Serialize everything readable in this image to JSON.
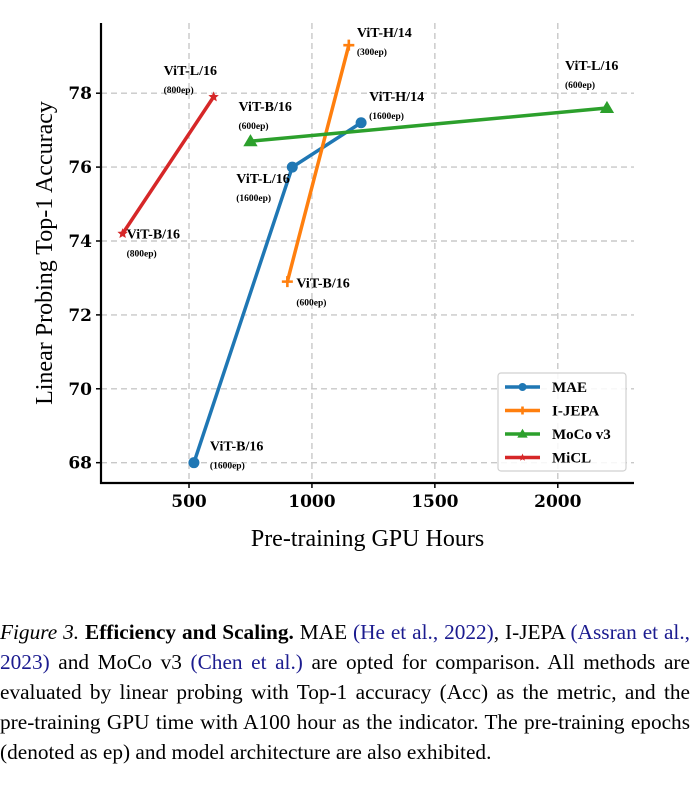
{
  "chart_data": {
    "type": "line",
    "title": "",
    "xlabel": "Pre-training GPU Hours",
    "ylabel": "Linear Probing Top-1 Accuracy",
    "xlim": [
      142,
      2310
    ],
    "ylim": [
      67.45,
      79.9
    ],
    "xticks": [
      500,
      1000,
      1500,
      2000
    ],
    "yticks": [
      68,
      70,
      72,
      74,
      76,
      78
    ],
    "grid": true,
    "legend_position": "lower-right",
    "series": [
      {
        "name": "MAE",
        "color": "#1f77b4",
        "marker": "circle",
        "points": [
          {
            "x": 520,
            "y": 68.0,
            "label": "ViT-B/16",
            "epochs": "(1600ep)"
          },
          {
            "x": 920,
            "y": 76.0,
            "label": "ViT-L/16",
            "epochs": "(1600ep)"
          },
          {
            "x": 1200,
            "y": 77.2,
            "label": "ViT-H/14",
            "epochs": "(1600ep)"
          }
        ]
      },
      {
        "name": "I-JEPA",
        "color": "#ff7f0e",
        "marker": "plus",
        "points": [
          {
            "x": 900,
            "y": 72.9,
            "label": "ViT-B/16",
            "epochs": "(600ep)"
          },
          {
            "x": 1150,
            "y": 79.3,
            "label": "ViT-H/14",
            "epochs": "(300ep)"
          }
        ]
      },
      {
        "name": "MoCo v3",
        "color": "#2ca02c",
        "marker": "triangle",
        "points": [
          {
            "x": 750,
            "y": 76.7,
            "label": "ViT-B/16",
            "epochs": "(600ep)"
          },
          {
            "x": 2200,
            "y": 77.6,
            "label": "ViT-L/16",
            "epochs": "(600ep)"
          }
        ]
      },
      {
        "name": "MiCL",
        "color": "#d62728",
        "marker": "star",
        "points": [
          {
            "x": 230,
            "y": 74.2,
            "label": "ViT-B/16",
            "epochs": "(800ep)"
          },
          {
            "x": 600,
            "y": 77.9,
            "label": "ViT-L/16",
            "epochs": "(800ep)"
          }
        ]
      }
    ]
  },
  "caption": {
    "figure_label": "Figure 3.",
    "title": "Efficiency and Scaling.",
    "parts": [
      {
        "text": " MAE ",
        "cite": false
      },
      {
        "text": "(He et al., 2022)",
        "cite": true
      },
      {
        "text": ", I-JEPA ",
        "cite": false
      },
      {
        "text": "(Assran et al., 2023)",
        "cite": true
      },
      {
        "text": " and MoCo v3 ",
        "cite": false
      },
      {
        "text": "(Chen et al.)",
        "cite": true
      },
      {
        "text": "  are opted for comparison.  All methods are evaluated by linear probing with Top-1 accuracy (Acc) as the metric, and the pre-training GPU time with A100 hour as the indicator. The pre-training epochs (denoted as ep) and model architecture are also exhibited.",
        "cite": false
      }
    ]
  }
}
